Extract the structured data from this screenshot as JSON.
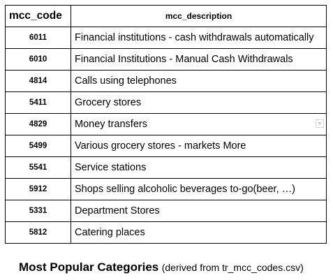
{
  "table": {
    "headers": {
      "code": "mcc_code",
      "description": "mcc_description"
    },
    "rows": [
      {
        "code": "6011",
        "description": "Financial institutions - cash withdrawals automatically"
      },
      {
        "code": "6010",
        "description": "Financial Institutions - Manual Cash Withdrawals"
      },
      {
        "code": "4814",
        "description": "Calls using telephones"
      },
      {
        "code": "5411",
        "description": "Grocery stores"
      },
      {
        "code": "4829",
        "description": "Money transfers"
      },
      {
        "code": "5499",
        "description": "Various grocery stores - markets More"
      },
      {
        "code": "5541",
        "description": "Service stations"
      },
      {
        "code": "5912",
        "description": "Shops selling alcoholic beverages to-go(beer, …)"
      },
      {
        "code": "5331",
        "description": "Department Stores"
      },
      {
        "code": "5812",
        "description": "Catering places"
      }
    ]
  },
  "caption": {
    "title": "Most Popular Categories",
    "note": "(derived from tr_mcc_codes.csv)"
  },
  "icons": {
    "dropdown_indicator": "chevron-down-icon"
  }
}
